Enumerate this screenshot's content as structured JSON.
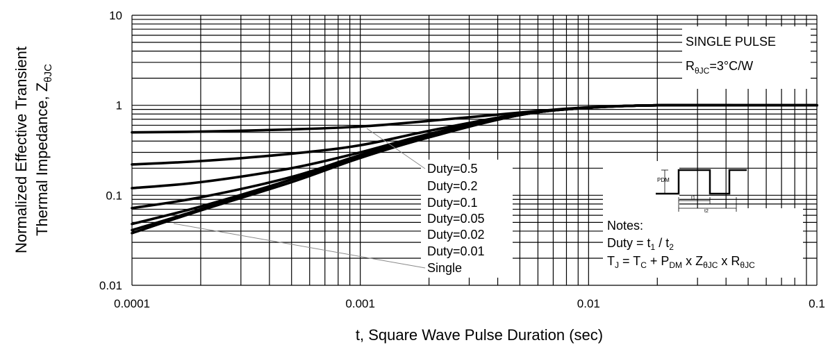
{
  "chart_data": {
    "type": "line",
    "x_scale": "log",
    "y_scale": "log",
    "xlim": [
      0.0001,
      0.1
    ],
    "ylim": [
      0.01,
      10
    ],
    "xlabel": "t, Square Wave Pulse Duration (sec)",
    "ylabel_line1": "Normalized Effective Transient",
    "ylabel_line2_main": "Thermal Impedance, Z",
    "ylabel_line2_sub": "θJC",
    "x_ticks": [
      {
        "value": 0.0001,
        "label": "0.0001"
      },
      {
        "value": 0.001,
        "label": "0.001"
      },
      {
        "value": 0.01,
        "label": "0.01"
      },
      {
        "value": 0.1,
        "label": "0.1"
      }
    ],
    "y_ticks": [
      {
        "value": 10,
        "label": "10"
      },
      {
        "value": 1,
        "label": "1"
      },
      {
        "value": 0.1,
        "label": "0.1"
      },
      {
        "value": 0.01,
        "label": "0.01"
      }
    ],
    "grid": true,
    "x": [
      0.0001,
      0.0002,
      0.0005,
      0.001,
      0.002,
      0.005,
      0.01,
      0.02,
      0.05,
      0.1
    ],
    "series": [
      {
        "name": "Duty=0.5",
        "values": [
          0.5,
          0.51,
          0.54,
          0.58,
          0.67,
          0.83,
          0.95,
          1.0,
          1.0,
          1.0
        ]
      },
      {
        "name": "Duty=0.2",
        "values": [
          0.22,
          0.24,
          0.29,
          0.36,
          0.52,
          0.8,
          0.94,
          1.0,
          1.0,
          1.0
        ]
      },
      {
        "name": "Duty=0.1",
        "values": [
          0.12,
          0.14,
          0.2,
          0.3,
          0.48,
          0.79,
          0.94,
          1.0,
          1.0,
          1.0
        ]
      },
      {
        "name": "Duty=0.05",
        "values": [
          0.072,
          0.095,
          0.16,
          0.28,
          0.46,
          0.78,
          0.94,
          1.0,
          1.0,
          1.0
        ]
      },
      {
        "name": "Duty=0.02",
        "values": [
          0.048,
          0.075,
          0.15,
          0.27,
          0.45,
          0.78,
          0.94,
          1.0,
          1.0,
          1.0
        ]
      },
      {
        "name": "Duty=0.01",
        "values": [
          0.041,
          0.07,
          0.15,
          0.27,
          0.45,
          0.78,
          0.94,
          1.0,
          1.0,
          1.0
        ]
      },
      {
        "name": "Single",
        "values": [
          0.038,
          0.068,
          0.14,
          0.26,
          0.44,
          0.78,
          0.94,
          1.0,
          1.0,
          1.0
        ]
      }
    ],
    "legend_labels": [
      "Duty=0.5",
      "Duty=0.2",
      "Duty=0.1",
      "Duty=0.05",
      "Duty=0.02",
      "Duty=0.01",
      "Single"
    ],
    "legend_placement": "center",
    "annotation_top_right": {
      "line1": "SINGLE PULSE",
      "line2_main": "R",
      "line2_sub": "θJC",
      "line2_rest": "=3°C/W"
    },
    "notes": {
      "title": "Notes:",
      "duty_pre": "Duty = t",
      "duty_sub1": "1",
      "duty_mid": " / t",
      "duty_sub2": "2",
      "formula_parts": [
        {
          "t": "T",
          "sub": false
        },
        {
          "t": "J",
          "sub": true
        },
        {
          "t": " = T",
          "sub": false
        },
        {
          "t": "C",
          "sub": true
        },
        {
          "t": " + P",
          "sub": false
        },
        {
          "t": "DM",
          "sub": true
        },
        {
          "t": " x Z",
          "sub": false
        },
        {
          "t": "θJC",
          "sub": true
        },
        {
          "t": " x R",
          "sub": false
        },
        {
          "t": "θJC",
          "sub": true
        }
      ],
      "diagram_labels": {
        "pdm": "PDM",
        "t1": "t1",
        "t2": "t2"
      }
    }
  }
}
